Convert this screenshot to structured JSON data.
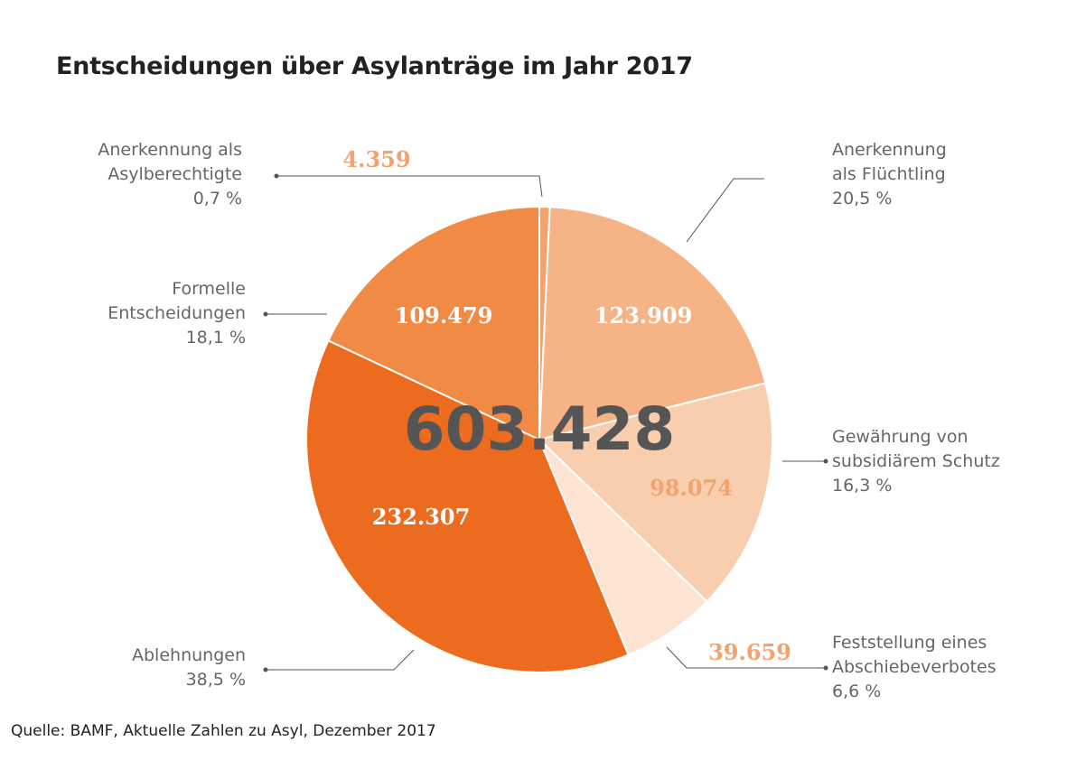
{
  "chart_data": {
    "type": "pie",
    "title": "Entscheidungen über Asylanträge im Jahr 2017",
    "total_label": "603.428",
    "slices": [
      {
        "name_lines": [
          "Anerkennung als",
          "Asylberechtigte"
        ],
        "value": 4359,
        "value_label": "4.359",
        "percent_label": "0,7 %",
        "color": "#f2a36e"
      },
      {
        "name_lines": [
          "Anerkennung",
          "als Flüchtling"
        ],
        "value": 123909,
        "value_label": "123.909",
        "percent_label": "20,5 %",
        "color": "#f6b486"
      },
      {
        "name_lines": [
          "Gewährung von",
          "subsidiärem Schutz"
        ],
        "value": 98074,
        "value_label": "98.074",
        "percent_label": "16,3 %",
        "color": "#f9ceae"
      },
      {
        "name_lines": [
          "Feststellung eines",
          "Abschiebeverbotes"
        ],
        "value": 39659,
        "value_label": "39.659",
        "percent_label": "6,6 %",
        "color": "#fce3d2"
      },
      {
        "name_lines": [
          "Ablehnungen"
        ],
        "value": 232307,
        "value_label": "232.307",
        "percent_label": "38,5 %",
        "color": "#ec6b1e"
      },
      {
        "name_lines": [
          "Formelle",
          "Entscheidungen"
        ],
        "value": 109479,
        "value_label": "109.479",
        "percent_label": "18,1 %",
        "color": "#f08a45"
      }
    ]
  },
  "source": "Quelle: BAMF, Aktuelle Zahlen zu Asyl, Dezember 2017"
}
